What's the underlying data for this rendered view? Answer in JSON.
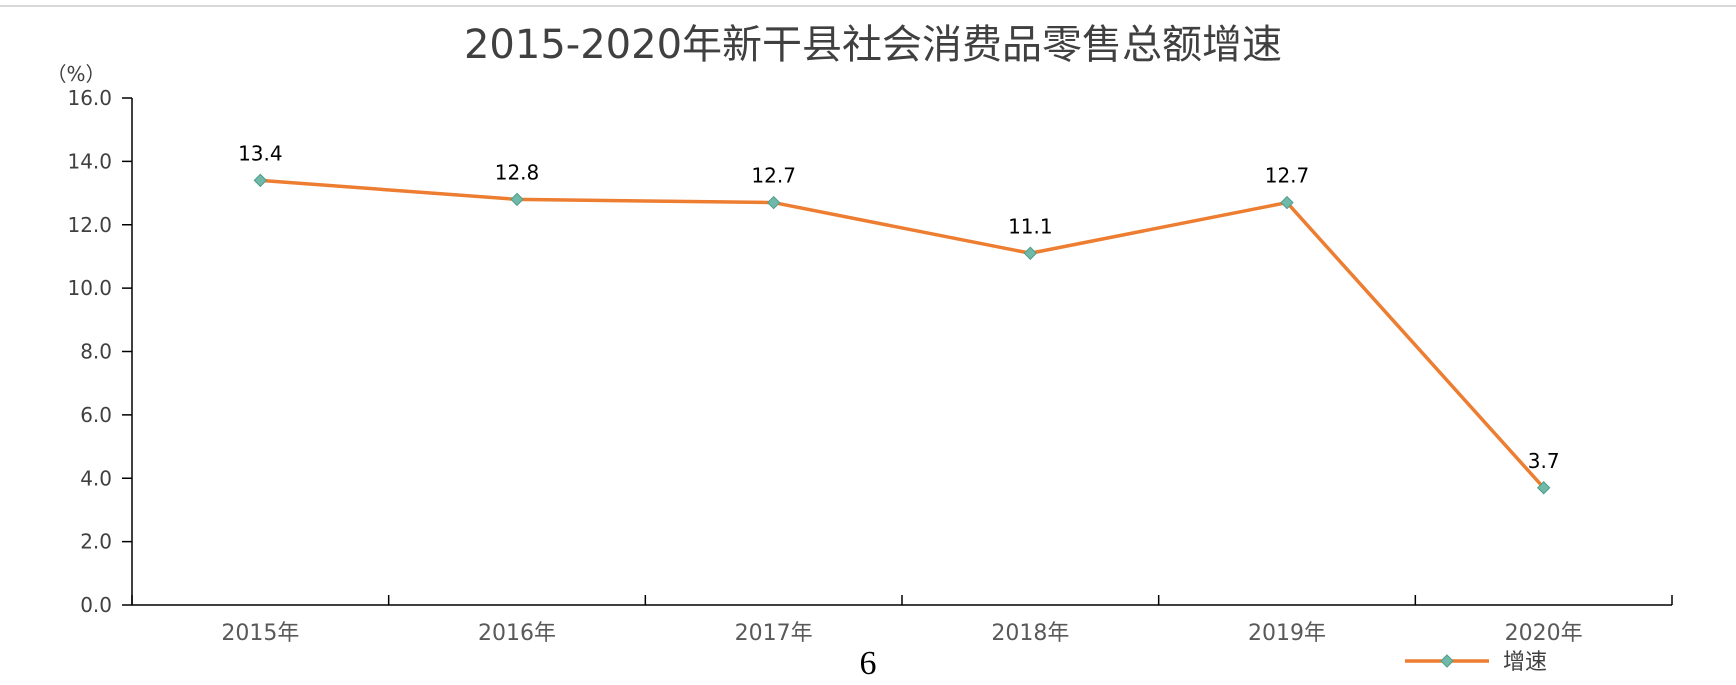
{
  "page_number": "6",
  "colors": {
    "line": "#ED7D31",
    "marker_fill": "#70B8A8",
    "marker_stroke": "#4E9C8A",
    "axis": "#000000",
    "text": "#404040"
  },
  "chart_data": {
    "type": "line",
    "title": "2015-2020年新干县社会消费品零售总额增速",
    "unit_label": "（%）",
    "categories": [
      "2015年",
      "2016年",
      "2017年",
      "2018年",
      "2019年",
      "2020年"
    ],
    "series": [
      {
        "name": "增速",
        "values": [
          13.4,
          12.8,
          12.7,
          11.1,
          12.7,
          3.7
        ],
        "data_labels": [
          "13.4",
          "12.8",
          "12.7",
          "11.1",
          "12.7",
          "3.7"
        ],
        "marker": "diamond"
      }
    ],
    "ylim": [
      0,
      16
    ],
    "yticks": [
      "0.0",
      "2.0",
      "4.0",
      "6.0",
      "8.0",
      "10.0",
      "12.0",
      "14.0",
      "16.0"
    ],
    "grid": false,
    "legend_position": "bottom-right"
  }
}
